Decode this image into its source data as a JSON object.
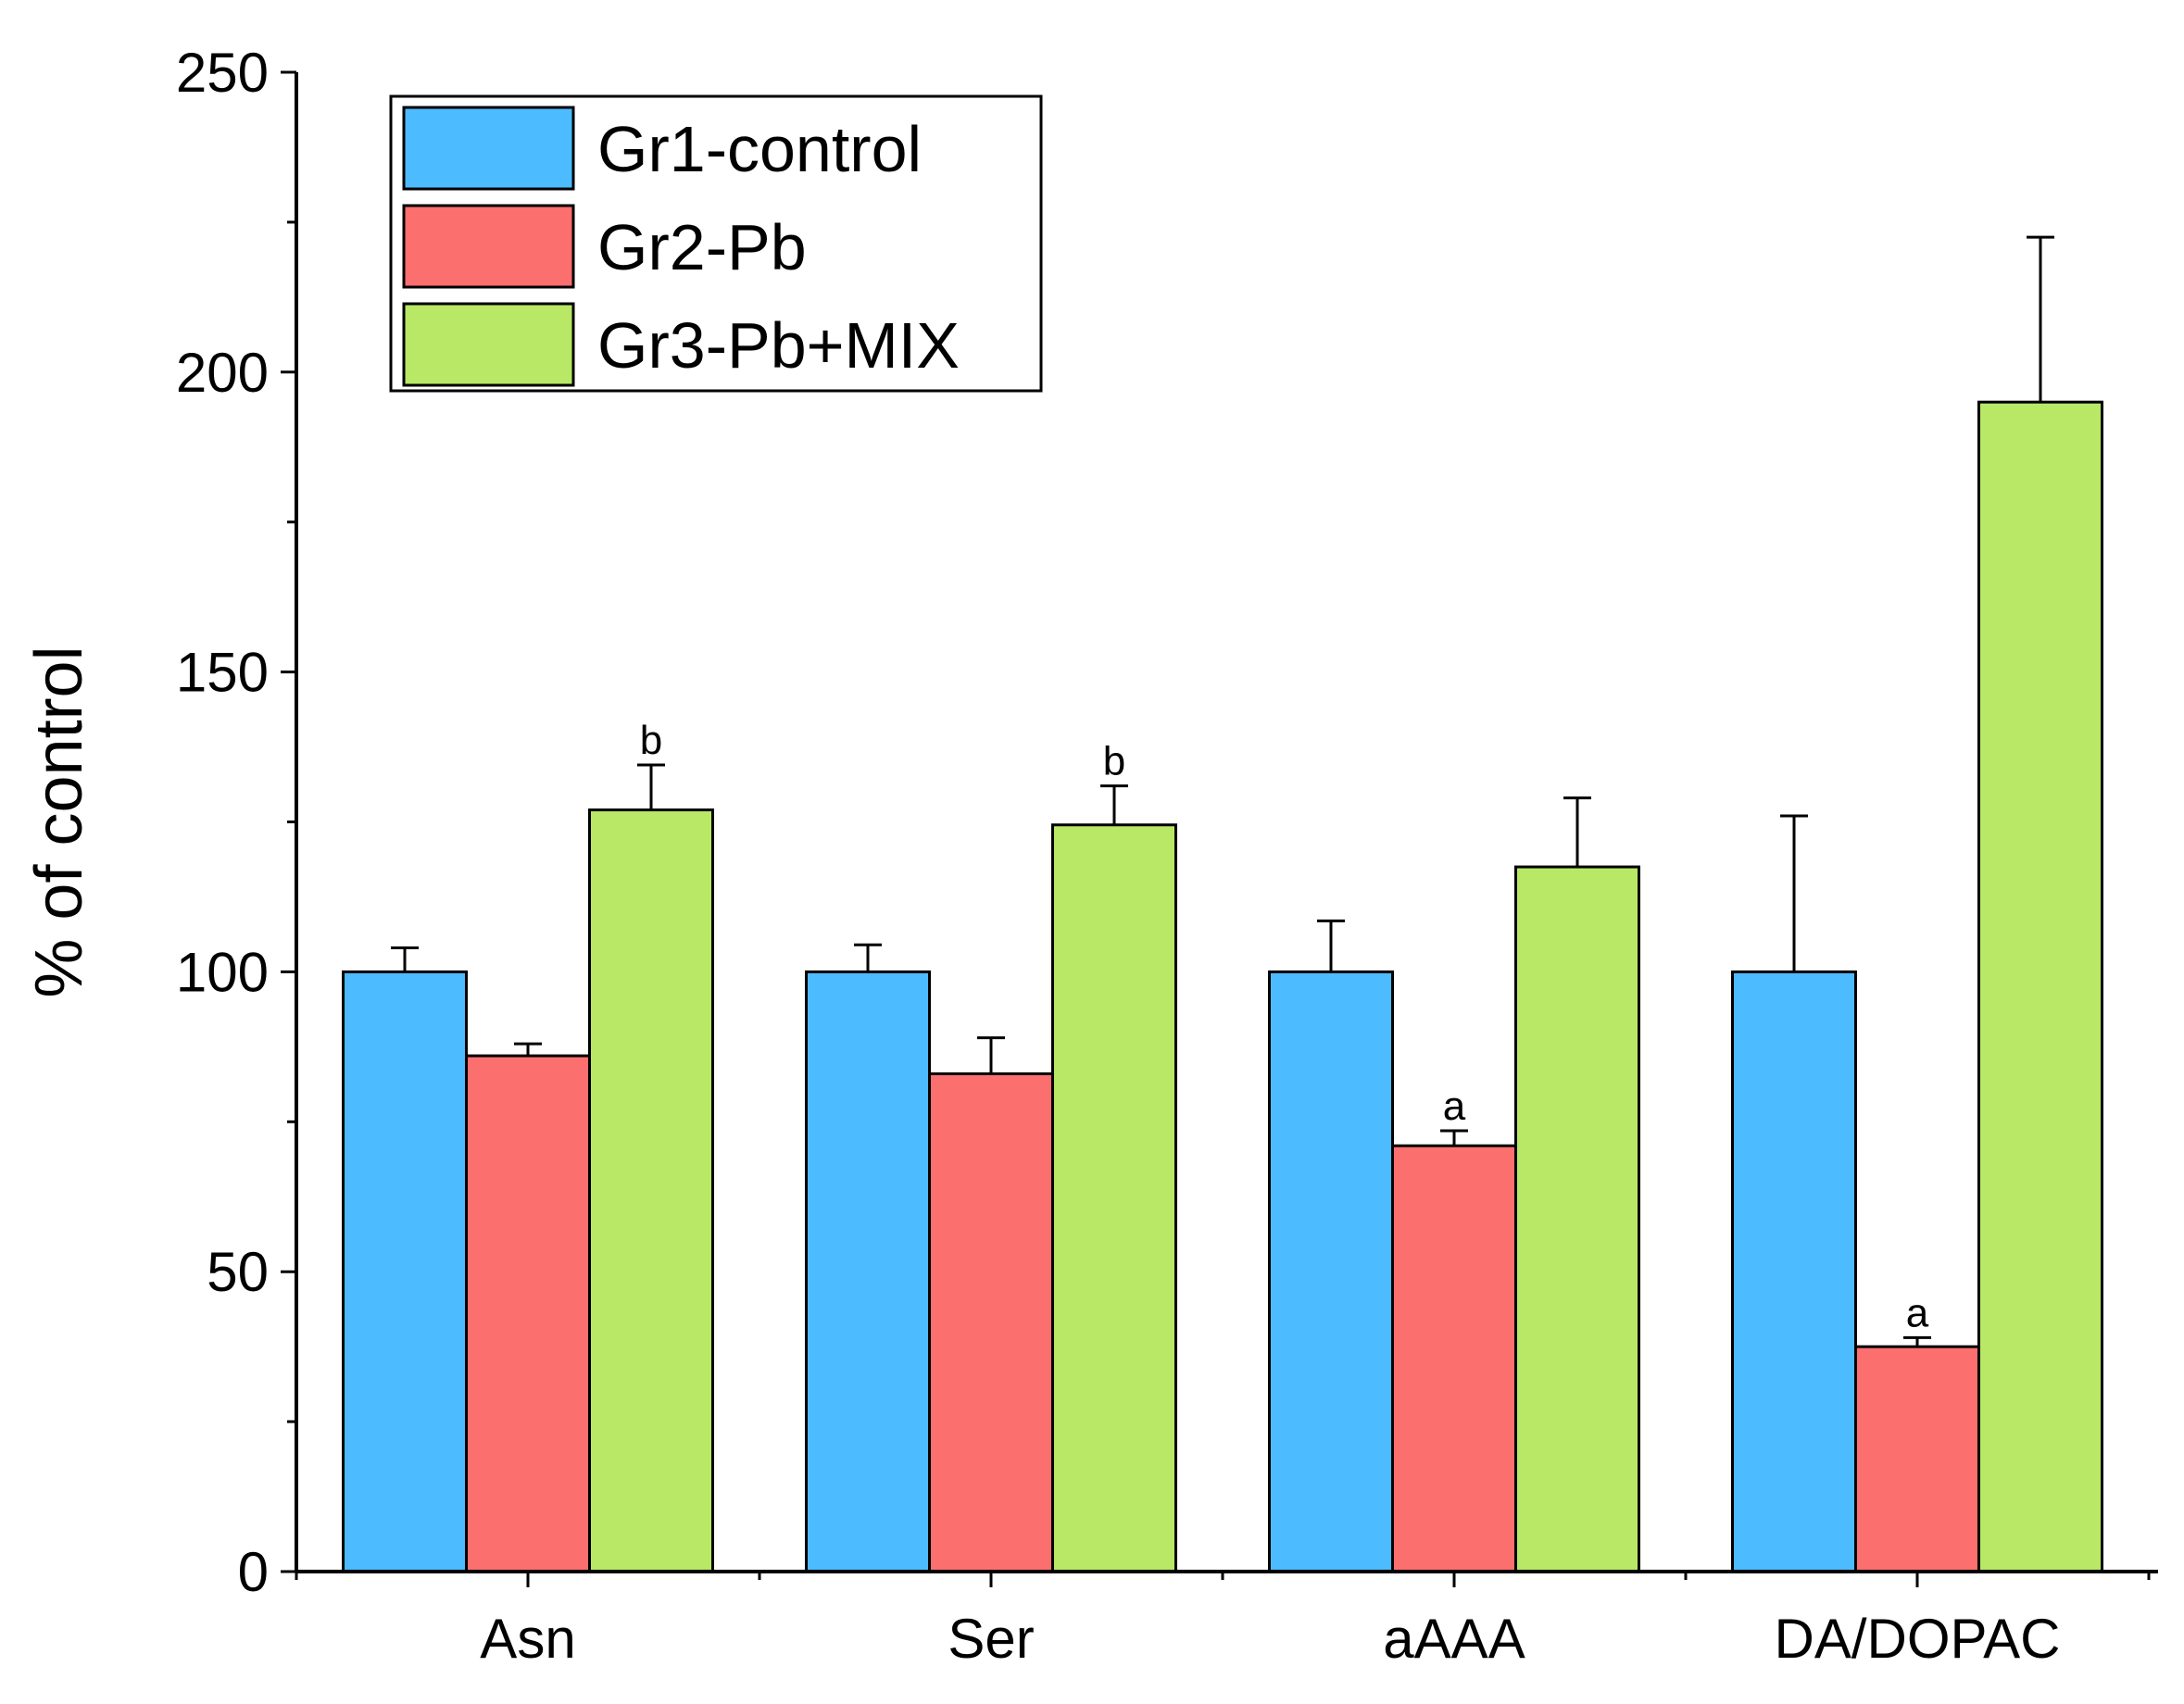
{
  "chart_data": {
    "type": "bar",
    "title": "",
    "xlabel": "",
    "ylabel": "% of control",
    "ylim": [
      0,
      250
    ],
    "yticks": [
      0,
      50,
      100,
      150,
      200,
      250
    ],
    "ytick_labels": [
      "0",
      "50",
      "100",
      "150",
      "200",
      "250"
    ],
    "yminor_step": 25,
    "categories": [
      "Asn",
      "Ser",
      "aAAA",
      "DA/DOPAC"
    ],
    "series": [
      {
        "name": "Gr1-control",
        "color": "#4dbbff",
        "values": [
          100,
          100,
          100,
          100
        ],
        "errors": [
          4,
          4.5,
          8.5,
          26
        ],
        "labels": [
          "",
          "",
          "",
          ""
        ]
      },
      {
        "name": "Gr2-Pb",
        "color": "#fc6f6f",
        "values": [
          86,
          83,
          71,
          37.5
        ],
        "errors": [
          2,
          6,
          2.5,
          1.5
        ],
        "labels": [
          "",
          "",
          "a",
          "a"
        ]
      },
      {
        "name": "Gr3-Pb+MIX",
        "color": "#b8e865",
        "values": [
          127,
          124.5,
          117.5,
          195
        ],
        "errors": [
          7.5,
          6.5,
          11.5,
          27.5
        ],
        "labels": [
          "b",
          "b",
          "",
          ""
        ]
      }
    ],
    "legend_position": "top-left",
    "grid": false
  }
}
